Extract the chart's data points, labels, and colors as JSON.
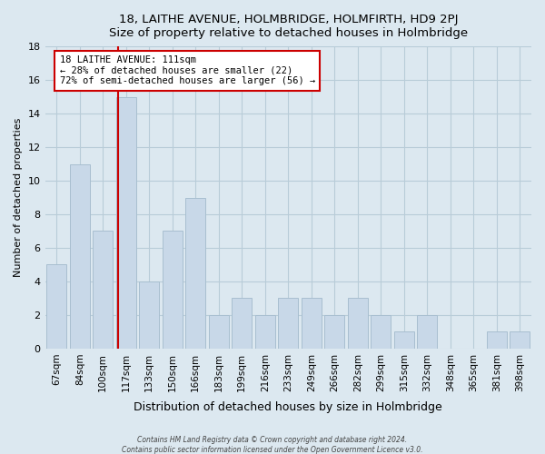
{
  "title1": "18, LAITHE AVENUE, HOLMBRIDGE, HOLMFIRTH, HD9 2PJ",
  "title2": "Size of property relative to detached houses in Holmbridge",
  "xlabel": "Distribution of detached houses by size in Holmbridge",
  "ylabel": "Number of detached properties",
  "bar_labels": [
    "67sqm",
    "84sqm",
    "100sqm",
    "117sqm",
    "133sqm",
    "150sqm",
    "166sqm",
    "183sqm",
    "199sqm",
    "216sqm",
    "233sqm",
    "249sqm",
    "266sqm",
    "282sqm",
    "299sqm",
    "315sqm",
    "332sqm",
    "348sqm",
    "365sqm",
    "381sqm",
    "398sqm"
  ],
  "bar_values": [
    5,
    11,
    7,
    15,
    4,
    7,
    9,
    2,
    3,
    2,
    3,
    3,
    2,
    3,
    2,
    1,
    2,
    0,
    0,
    1,
    1
  ],
  "bar_color": "#c8d8e8",
  "bar_edge_color": "#a8bfd0",
  "reference_line_label": "18 LAITHE AVENUE: 111sqm",
  "annotation_line1": "← 28% of detached houses are smaller (22)",
  "annotation_line2": "72% of semi-detached houses are larger (56) →",
  "annotation_box_color": "#ffffff",
  "annotation_box_edge": "#cc0000",
  "ref_line_color": "#cc0000",
  "ylim": [
    0,
    18
  ],
  "yticks": [
    0,
    2,
    4,
    6,
    8,
    10,
    12,
    14,
    16,
    18
  ],
  "footer1": "Contains HM Land Registry data © Crown copyright and database right 2024.",
  "footer2": "Contains public sector information licensed under the Open Government Licence v3.0.",
  "bg_color": "#dce8f0",
  "plot_bg_color": "#dce8f0",
  "grid_color": "#b8ccd8"
}
